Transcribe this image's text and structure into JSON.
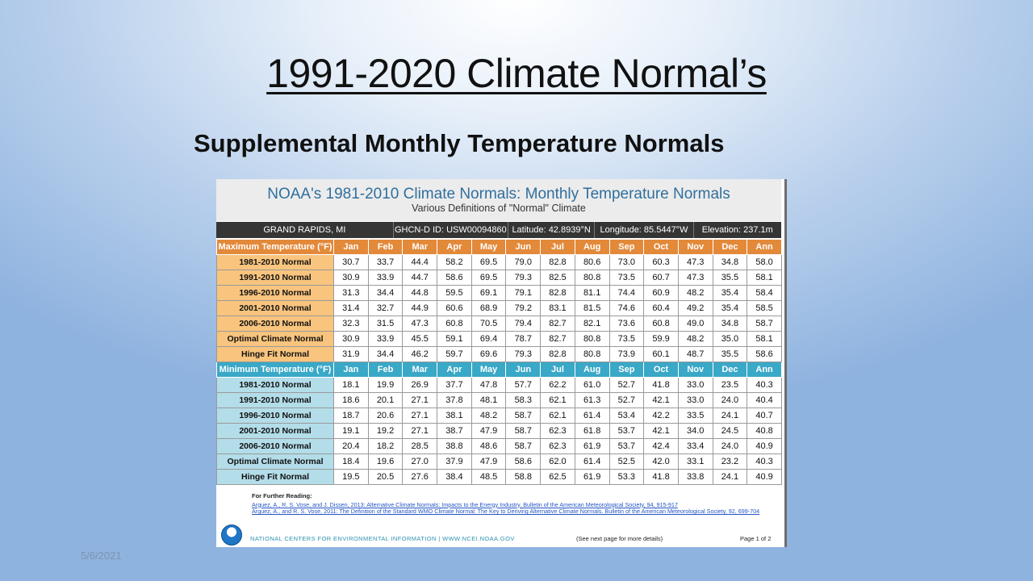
{
  "slide": {
    "title": "1991-2020 Climate Normal’s",
    "subtitle": "Supplemental Monthly Temperature Normals",
    "date": "5/6/2021"
  },
  "document": {
    "title": "NOAA's 1981-2010 Climate Normals: Monthly Temperature Normals",
    "subtitle": "Various Definitions of \"Normal\" Climate",
    "station": {
      "name": "GRAND RAPIDS, MI",
      "ghcnd": "GHCN-D ID: USW00094860",
      "latitude": "Latitude: 42.8939°N",
      "longitude": "Longitude: 85.5447°W",
      "elevation": "Elevation: 237.1m"
    },
    "months": [
      "Jan",
      "Feb",
      "Mar",
      "Apr",
      "May",
      "Jun",
      "Jul",
      "Aug",
      "Sep",
      "Oct",
      "Nov",
      "Dec",
      "Ann"
    ],
    "max_header": "Maximum Temperature (°F)",
    "min_header": "Minimum Temperature (°F)",
    "max_rows": [
      {
        "label": "1981-2010 Normal",
        "values": [
          "30.7",
          "33.7",
          "44.4",
          "58.2",
          "69.5",
          "79.0",
          "82.8",
          "80.6",
          "73.0",
          "60.3",
          "47.3",
          "34.8",
          "58.0"
        ]
      },
      {
        "label": "1991-2010 Normal",
        "values": [
          "30.9",
          "33.9",
          "44.7",
          "58.6",
          "69.5",
          "79.3",
          "82.5",
          "80.8",
          "73.5",
          "60.7",
          "47.3",
          "35.5",
          "58.1"
        ]
      },
      {
        "label": "1996-2010 Normal",
        "values": [
          "31.3",
          "34.4",
          "44.8",
          "59.5",
          "69.1",
          "79.1",
          "82.8",
          "81.1",
          "74.4",
          "60.9",
          "48.2",
          "35.4",
          "58.4"
        ]
      },
      {
        "label": "2001-2010 Normal",
        "values": [
          "31.4",
          "32.7",
          "44.9",
          "60.6",
          "68.9",
          "79.2",
          "83.1",
          "81.5",
          "74.6",
          "60.4",
          "49.2",
          "35.4",
          "58.5"
        ]
      },
      {
        "label": "2006-2010 Normal",
        "values": [
          "32.3",
          "31.5",
          "47.3",
          "60.8",
          "70.5",
          "79.4",
          "82.7",
          "82.1",
          "73.6",
          "60.8",
          "49.0",
          "34.8",
          "58.7"
        ]
      },
      {
        "label": "Optimal Climate Normal",
        "values": [
          "30.9",
          "33.9",
          "45.5",
          "59.1",
          "69.4",
          "78.7",
          "82.7",
          "80.8",
          "73.5",
          "59.9",
          "48.2",
          "35.0",
          "58.1"
        ]
      },
      {
        "label": "Hinge Fit Normal",
        "values": [
          "31.9",
          "34.4",
          "46.2",
          "59.7",
          "69.6",
          "79.3",
          "82.8",
          "80.8",
          "73.9",
          "60.1",
          "48.7",
          "35.5",
          "58.6"
        ]
      }
    ],
    "min_rows": [
      {
        "label": "1981-2010 Normal",
        "values": [
          "18.1",
          "19.9",
          "26.9",
          "37.7",
          "47.8",
          "57.7",
          "62.2",
          "61.0",
          "52.7",
          "41.8",
          "33.0",
          "23.5",
          "40.3"
        ]
      },
      {
        "label": "1991-2010 Normal",
        "values": [
          "18.6",
          "20.1",
          "27.1",
          "37.8",
          "48.1",
          "58.3",
          "62.1",
          "61.3",
          "52.7",
          "42.1",
          "33.0",
          "24.0",
          "40.4"
        ]
      },
      {
        "label": "1996-2010 Normal",
        "values": [
          "18.7",
          "20.6",
          "27.1",
          "38.1",
          "48.2",
          "58.7",
          "62.1",
          "61.4",
          "53.4",
          "42.2",
          "33.5",
          "24.1",
          "40.7"
        ]
      },
      {
        "label": "2001-2010 Normal",
        "values": [
          "19.1",
          "19.2",
          "27.1",
          "38.7",
          "47.9",
          "58.7",
          "62.3",
          "61.8",
          "53.7",
          "42.1",
          "34.0",
          "24.5",
          "40.8"
        ]
      },
      {
        "label": "2006-2010 Normal",
        "values": [
          "20.4",
          "18.2",
          "28.5",
          "38.8",
          "48.6",
          "58.7",
          "62.3",
          "61.9",
          "53.7",
          "42.4",
          "33.4",
          "24.0",
          "40.9"
        ]
      },
      {
        "label": "Optimal Climate Normal",
        "values": [
          "18.4",
          "19.6",
          "27.0",
          "37.9",
          "47.9",
          "58.6",
          "62.0",
          "61.4",
          "52.5",
          "42.0",
          "33.1",
          "23.2",
          "40.3"
        ]
      },
      {
        "label": "Hinge Fit Normal",
        "values": [
          "19.5",
          "20.5",
          "27.6",
          "38.4",
          "48.5",
          "58.8",
          "62.5",
          "61.9",
          "53.3",
          "41.8",
          "33.8",
          "24.1",
          "40.9"
        ]
      }
    ],
    "further_reading": {
      "title": "For Further Reading:",
      "refs": [
        "Arguez, A., R. S. Vose, and J. Dissen, 2013: Alternative Climate Normals: Impacts to the Energy Industry. Bulletin of the American Meteorological Society, 94, 915-917",
        "Arguez, A., and R. S. Vose, 2011: The Definition of the Standard WMO Climate Normal: The Key to Deriving Alternative Climate Normals. Bulletin of the American Meteorological Society, 92, 699-704"
      ]
    },
    "footer": {
      "center": "NATIONAL CENTERS FOR ENVIRONMENTAL INFORMATION   |   WWW.NCEI.NOAA.GOV",
      "more": "(See next page for more details)",
      "page": "Page 1 of 2"
    },
    "colors": {
      "max_header": "#e3893a",
      "max_label": "#f8c47e",
      "min_header": "#3aa8c7",
      "min_label": "#b3dde9",
      "title_blue": "#2f6f9e",
      "station_bar": "#353535"
    }
  }
}
